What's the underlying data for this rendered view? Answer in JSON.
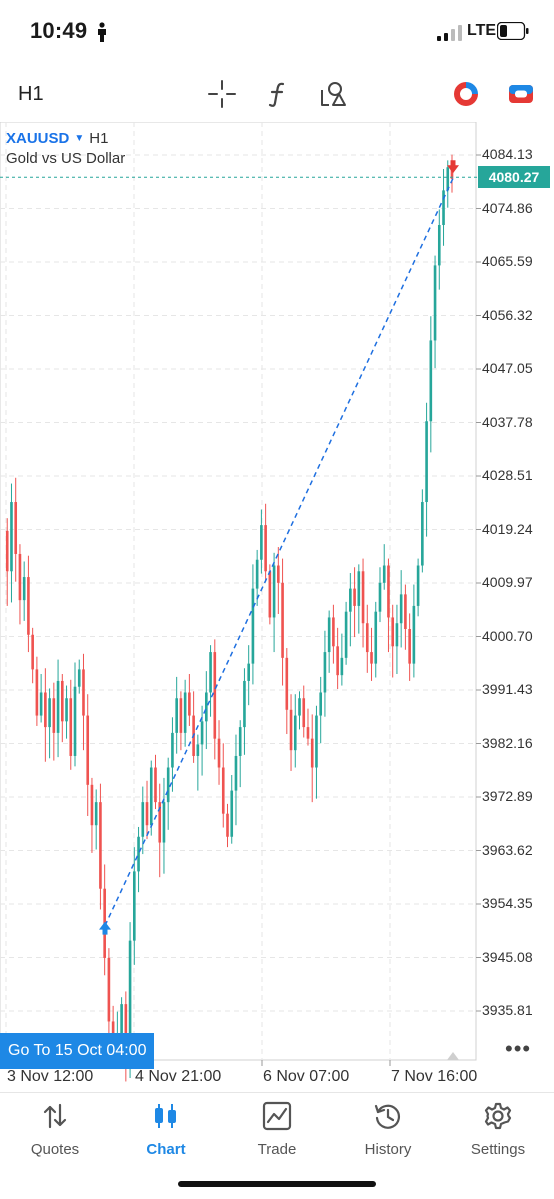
{
  "status_bar": {
    "time": "10:49",
    "network": "LTE"
  },
  "toolbar": {
    "timeframe": "H1",
    "icons": [
      "crosshair-icon",
      "indicators-icon",
      "objects-icon",
      "one-click-trading-icon",
      "account-icon"
    ]
  },
  "chart": {
    "symbol": "XAUUSD",
    "symbol_timeframe": "H1",
    "description": "Gold vs US Dollar",
    "current_price": "4080.27",
    "goto_label": "Go To 15 Oct 04:00",
    "y_axis_labels": [
      "4084.13",
      "4074.86",
      "4065.59",
      "4056.32",
      "4047.05",
      "4037.78",
      "4028.51",
      "4019.24",
      "4009.97",
      "4000.70",
      "3991.43",
      "3982.16",
      "3972.89",
      "3963.62",
      "3954.35",
      "3945.08",
      "3935.81"
    ],
    "x_axis_labels": [
      "3 Nov 12:00",
      "4 Nov 21:00",
      "6 Nov 07:00",
      "7 Nov 16:00"
    ],
    "colors": {
      "bull": "#26a69a",
      "bear": "#ef5350",
      "trend_line": "#1e6fe0",
      "buy_arrow": "#1e88e5",
      "sell_arrow": "#e53935"
    }
  },
  "nav": {
    "items": [
      {
        "label": "Quotes",
        "icon": "quotes-arrows-icon"
      },
      {
        "label": "Chart",
        "icon": "candles-icon"
      },
      {
        "label": "Trade",
        "icon": "trade-chart-icon"
      },
      {
        "label": "History",
        "icon": "history-clock-icon"
      },
      {
        "label": "Settings",
        "icon": "gear-icon"
      }
    ],
    "active": "Chart"
  }
}
